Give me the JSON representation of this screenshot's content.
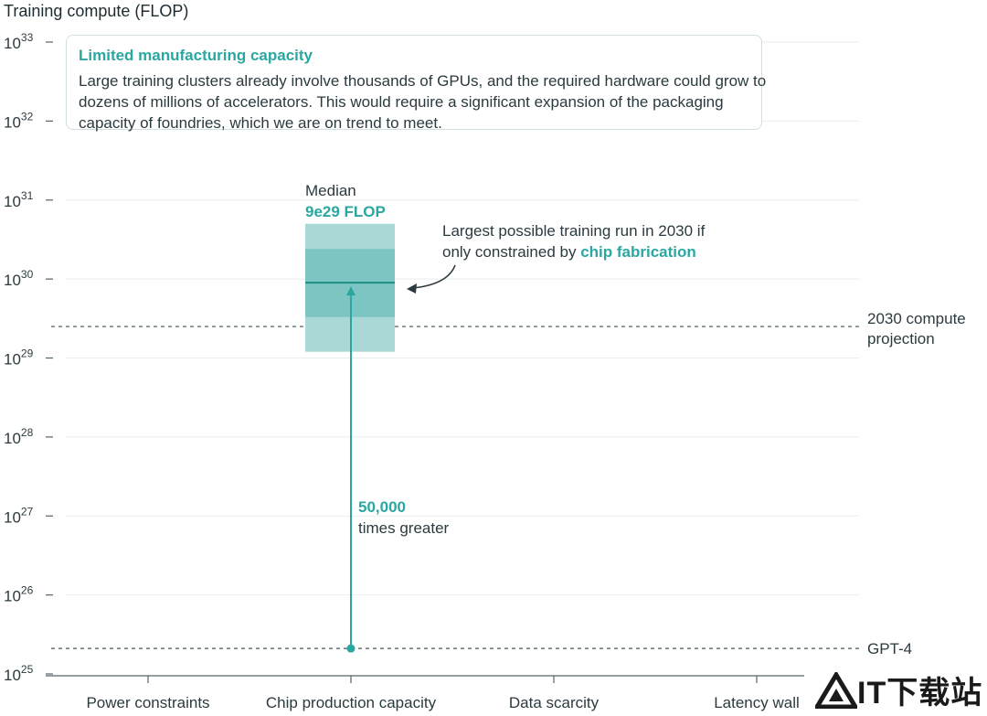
{
  "chart_data": {
    "type": "range",
    "ylabel": "Training compute (FLOP)",
    "yscale": "log",
    "ylim_exponent": [
      25,
      33
    ],
    "yticks": [
      {
        "base": "10",
        "exp": "25"
      },
      {
        "base": "10",
        "exp": "26"
      },
      {
        "base": "10",
        "exp": "27"
      },
      {
        "base": "10",
        "exp": "28"
      },
      {
        "base": "10",
        "exp": "29"
      },
      {
        "base": "10",
        "exp": "30"
      },
      {
        "base": "10",
        "exp": "31"
      },
      {
        "base": "10",
        "exp": "32"
      },
      {
        "base": "10",
        "exp": "33"
      }
    ],
    "categories": [
      "Power constraints",
      "Chip production capacity",
      "Data scarcity",
      "Latency wall"
    ],
    "grid": true,
    "range_bar": {
      "category": "Chip production capacity",
      "outer_range": [
        1.2e+29,
        5e+30
      ],
      "inner_range": [
        3.3e+29,
        2.4e+30
      ],
      "median": 9e+29,
      "median_label": "Median",
      "median_value_label": "9e29 FLOP"
    },
    "reference_lines": [
      {
        "name": "2030 compute projection",
        "value": 2.5e+29
      },
      {
        "name": "GPT-4",
        "value": 2.1e+25
      }
    ],
    "annotations": {
      "arrow_label_value": "50,000",
      "arrow_label_text": "times greater",
      "chip_note_line1": "Largest possible training run in 2030 if",
      "chip_note_line2_prefix": "only constrained by ",
      "chip_note_highlight": "chip fabrication"
    }
  },
  "callout": {
    "title": "Limited manufacturing capacity",
    "body": "Large training clusters already involve thousands of GPUs, and the required hardware could grow to dozens of millions of accelerators. This would require a significant expansion of the packaging capacity of foundries, which we are on trend to meet."
  },
  "colors": {
    "teal": "#2aa7a0",
    "outer_band": "#a9d8d6",
    "inner_band": "#7cc5c2",
    "median_line": "#1f8f89",
    "grid": "#e8eeee",
    "dashed": "#6f7d80",
    "text": "#2b3a3f"
  },
  "watermark": {
    "text": "IT下载站"
  }
}
